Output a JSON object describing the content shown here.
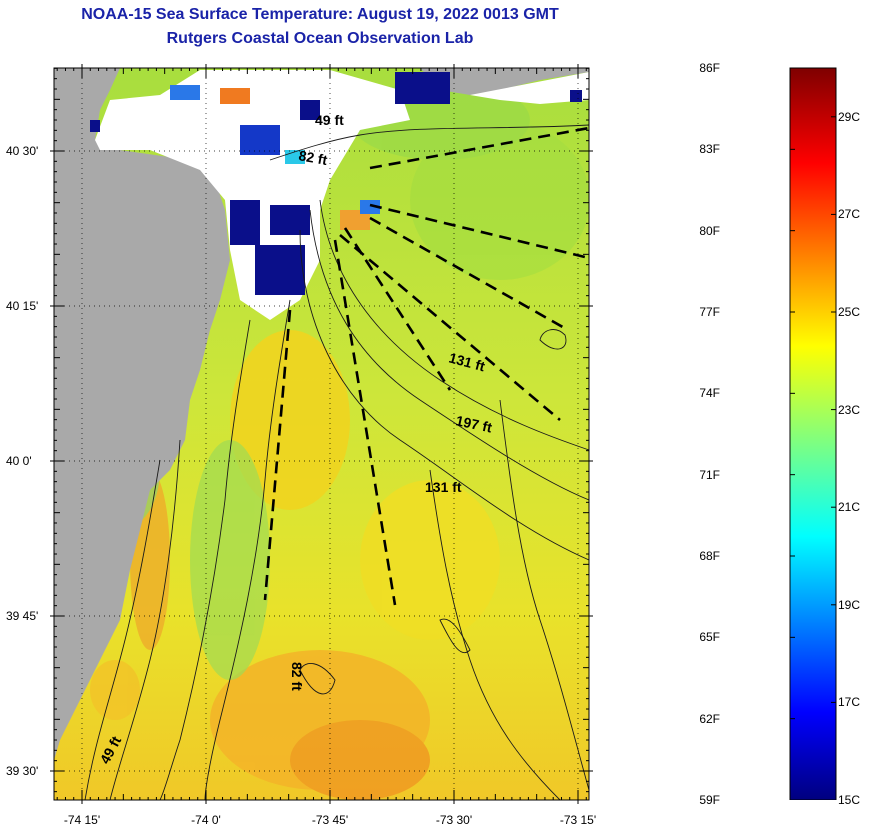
{
  "title_line1": "NOAA-15 Sea Surface Temperature:  August 19, 2022 0013 GMT",
  "title_line2": "Rutgers Coastal Ocean Observation Lab",
  "lat_labels": [
    {
      "label": "40 30'",
      "value": 40.5
    },
    {
      "label": "40 15'",
      "value": 40.25
    },
    {
      "label": "40 0'",
      "value": 40.0
    },
    {
      "label": "39 45'",
      "value": 39.75
    },
    {
      "label": "39 30'",
      "value": 39.5
    }
  ],
  "lon_labels": [
    {
      "label": "-74 15'",
      "value": -74.25
    },
    {
      "label": "-74 0'",
      "value": -74.0
    },
    {
      "label": "-73 45'",
      "value": -73.75
    },
    {
      "label": "-73 30'",
      "value": -73.5
    },
    {
      "label": "-73 15'",
      "value": -73.25
    }
  ],
  "depth_labels": [
    "49 ft",
    "82 ft",
    "131 ft",
    "197 ft",
    "131 ft",
    "82 ft",
    "49 ft"
  ],
  "colorbar": {
    "fahrenheit": [
      "86F",
      "83F",
      "80F",
      "77F",
      "74F",
      "71F",
      "68F",
      "65F",
      "62F",
      "59F"
    ],
    "celsius": [
      "29C",
      "27C",
      "25C",
      "23C",
      "21C",
      "19C",
      "17C",
      "15C"
    ],
    "f_range": [
      59,
      86
    ]
  },
  "colors": {
    "title": "#1a23a8",
    "land": "#a9a9a9",
    "ocean_mid": "#b9e43c",
    "ocean_warm": "#f2d21a",
    "cloud_cold": "#0a0f8a"
  }
}
